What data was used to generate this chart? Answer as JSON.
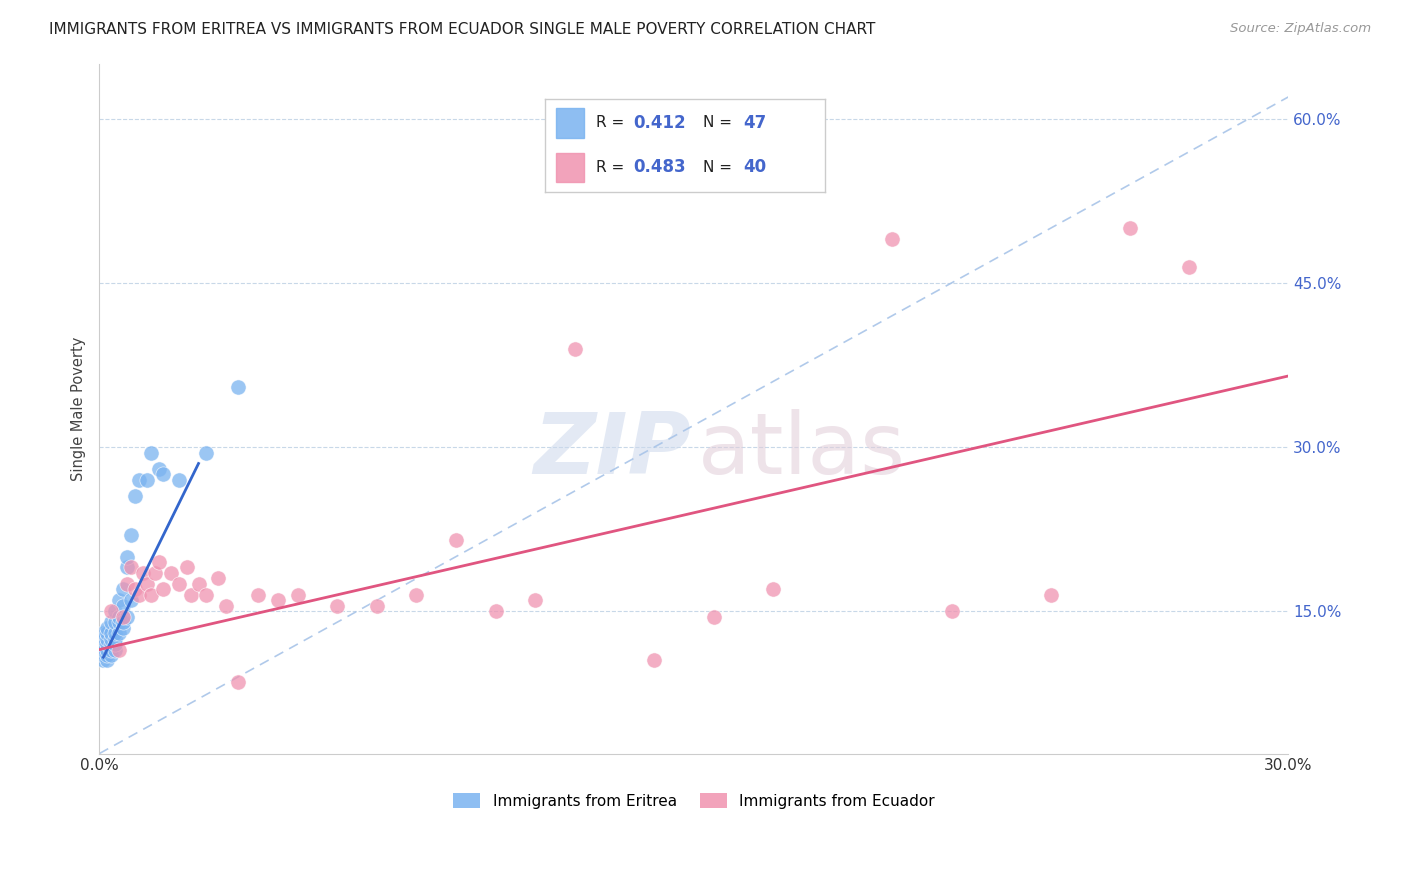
{
  "title": "IMMIGRANTS FROM ERITREA VS IMMIGRANTS FROM ECUADOR SINGLE MALE POVERTY CORRELATION CHART",
  "source": "Source: ZipAtlas.com",
  "ylabel": "Single Male Poverty",
  "eritrea_color": "#7ab3f0",
  "ecuador_color": "#f093b0",
  "trendline_eritrea_color": "#3366cc",
  "trendline_ecuador_color": "#e05580",
  "dashed_line_color": "#a8c4e8",
  "xlim": [
    0.0,
    0.3
  ],
  "ylim": [
    0.02,
    0.65
  ],
  "y_ticks": [
    0.15,
    0.3,
    0.45,
    0.6
  ],
  "x_ticks": [
    0.0,
    0.05,
    0.1,
    0.15,
    0.2,
    0.25,
    0.3
  ],
  "eritrea_x": [
    0.001,
    0.001,
    0.001,
    0.001,
    0.001,
    0.001,
    0.002,
    0.002,
    0.002,
    0.002,
    0.002,
    0.002,
    0.002,
    0.003,
    0.003,
    0.003,
    0.003,
    0.003,
    0.003,
    0.004,
    0.004,
    0.004,
    0.004,
    0.004,
    0.004,
    0.005,
    0.005,
    0.005,
    0.005,
    0.006,
    0.006,
    0.006,
    0.006,
    0.007,
    0.007,
    0.007,
    0.008,
    0.008,
    0.009,
    0.01,
    0.012,
    0.013,
    0.015,
    0.016,
    0.02,
    0.027,
    0.035
  ],
  "eritrea_y": [
    0.105,
    0.11,
    0.115,
    0.12,
    0.125,
    0.13,
    0.105,
    0.11,
    0.115,
    0.12,
    0.125,
    0.13,
    0.135,
    0.11,
    0.115,
    0.12,
    0.125,
    0.13,
    0.14,
    0.115,
    0.12,
    0.125,
    0.13,
    0.14,
    0.15,
    0.13,
    0.14,
    0.145,
    0.16,
    0.135,
    0.14,
    0.155,
    0.17,
    0.145,
    0.19,
    0.2,
    0.16,
    0.22,
    0.255,
    0.27,
    0.27,
    0.295,
    0.28,
    0.275,
    0.27,
    0.295,
    0.355
  ],
  "ecuador_x": [
    0.003,
    0.005,
    0.006,
    0.007,
    0.008,
    0.009,
    0.01,
    0.011,
    0.012,
    0.013,
    0.014,
    0.015,
    0.016,
    0.018,
    0.02,
    0.022,
    0.023,
    0.025,
    0.027,
    0.03,
    0.032,
    0.035,
    0.04,
    0.045,
    0.05,
    0.06,
    0.07,
    0.08,
    0.09,
    0.1,
    0.11,
    0.12,
    0.14,
    0.155,
    0.17,
    0.2,
    0.215,
    0.24,
    0.26,
    0.275
  ],
  "ecuador_y": [
    0.15,
    0.115,
    0.145,
    0.175,
    0.19,
    0.17,
    0.165,
    0.185,
    0.175,
    0.165,
    0.185,
    0.195,
    0.17,
    0.185,
    0.175,
    0.19,
    0.165,
    0.175,
    0.165,
    0.18,
    0.155,
    0.085,
    0.165,
    0.16,
    0.165,
    0.155,
    0.155,
    0.165,
    0.215,
    0.15,
    0.16,
    0.39,
    0.105,
    0.145,
    0.17,
    0.49,
    0.15,
    0.165,
    0.5,
    0.465
  ],
  "eritrea_trend_x": [
    0.001,
    0.025
  ],
  "eritrea_trend_y": [
    0.108,
    0.285
  ],
  "ecuador_trend_x": [
    0.0,
    0.3
  ],
  "ecuador_trend_y": [
    0.115,
    0.365
  ]
}
